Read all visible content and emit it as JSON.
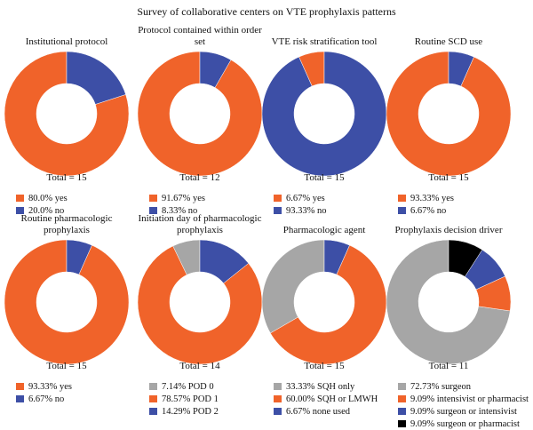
{
  "title": "Survey of collaborative centers on VTE prophylaxis patterns",
  "colors": {
    "orange": "#f0632a",
    "blue": "#3d4fa6",
    "gray": "#a6a6a6",
    "black": "#000000"
  },
  "chart_data": [
    {
      "type": "pie",
      "title": "Institutional protocol",
      "total_label": "Total = 15",
      "slices": [
        {
          "label": "80.0% yes",
          "value": 80.0,
          "color": "#f0632a"
        },
        {
          "label": "20.0% no",
          "value": 20.0,
          "color": "#3d4fa6"
        }
      ]
    },
    {
      "type": "pie",
      "title": "Protocol contained within order set",
      "total_label": "Total = 12",
      "slices": [
        {
          "label": "91.67% yes",
          "value": 91.67,
          "color": "#f0632a"
        },
        {
          "label": "8.33% no",
          "value": 8.33,
          "color": "#3d4fa6"
        }
      ]
    },
    {
      "type": "pie",
      "title": "VTE risk stratification tool",
      "total_label": "Total = 15",
      "slices": [
        {
          "label": "6.67% yes",
          "value": 6.67,
          "color": "#f0632a"
        },
        {
          "label": "93.33% no",
          "value": 93.33,
          "color": "#3d4fa6"
        }
      ]
    },
    {
      "type": "pie",
      "title": "Routine SCD use",
      "total_label": "Total = 15",
      "slices": [
        {
          "label": "93.33% yes",
          "value": 93.33,
          "color": "#f0632a"
        },
        {
          "label": "6.67% no",
          "value": 6.67,
          "color": "#3d4fa6"
        }
      ]
    },
    {
      "type": "pie",
      "title": "Routine pharmacologic prophylaxis",
      "total_label": "Total = 15",
      "slices": [
        {
          "label": "93.33% yes",
          "value": 93.33,
          "color": "#f0632a"
        },
        {
          "label": "6.67% no",
          "value": 6.67,
          "color": "#3d4fa6"
        }
      ]
    },
    {
      "type": "pie",
      "title": "Initiation day of pharmacologic prophylaxis",
      "total_label": "Total = 14",
      "slices": [
        {
          "label": "7.14% POD 0",
          "value": 7.14,
          "color": "#a6a6a6"
        },
        {
          "label": "78.57% POD 1",
          "value": 78.57,
          "color": "#f0632a"
        },
        {
          "label": "14.29% POD 2",
          "value": 14.29,
          "color": "#3d4fa6"
        }
      ]
    },
    {
      "type": "pie",
      "title": "Pharmacologic agent",
      "total_label": "Total = 15",
      "slices": [
        {
          "label": "33.33% SQH only",
          "value": 33.33,
          "color": "#a6a6a6"
        },
        {
          "label": "60.00% SQH or LMWH",
          "value": 60.0,
          "color": "#f0632a"
        },
        {
          "label": "6.67% none used",
          "value": 6.67,
          "color": "#3d4fa6"
        }
      ]
    },
    {
      "type": "pie",
      "title": "Prophylaxis decision driver",
      "total_label": "Total = 11",
      "slices": [
        {
          "label": "72.73% surgeon",
          "value": 72.73,
          "color": "#a6a6a6"
        },
        {
          "label": "9.09% intensivist or pharmacist",
          "value": 9.09,
          "color": "#f0632a"
        },
        {
          "label": "9.09% surgeon or intensivist",
          "value": 9.09,
          "color": "#3d4fa6"
        },
        {
          "label": "9.09% surgeon or pharmacist",
          "value": 9.09,
          "color": "#000000"
        }
      ]
    }
  ]
}
